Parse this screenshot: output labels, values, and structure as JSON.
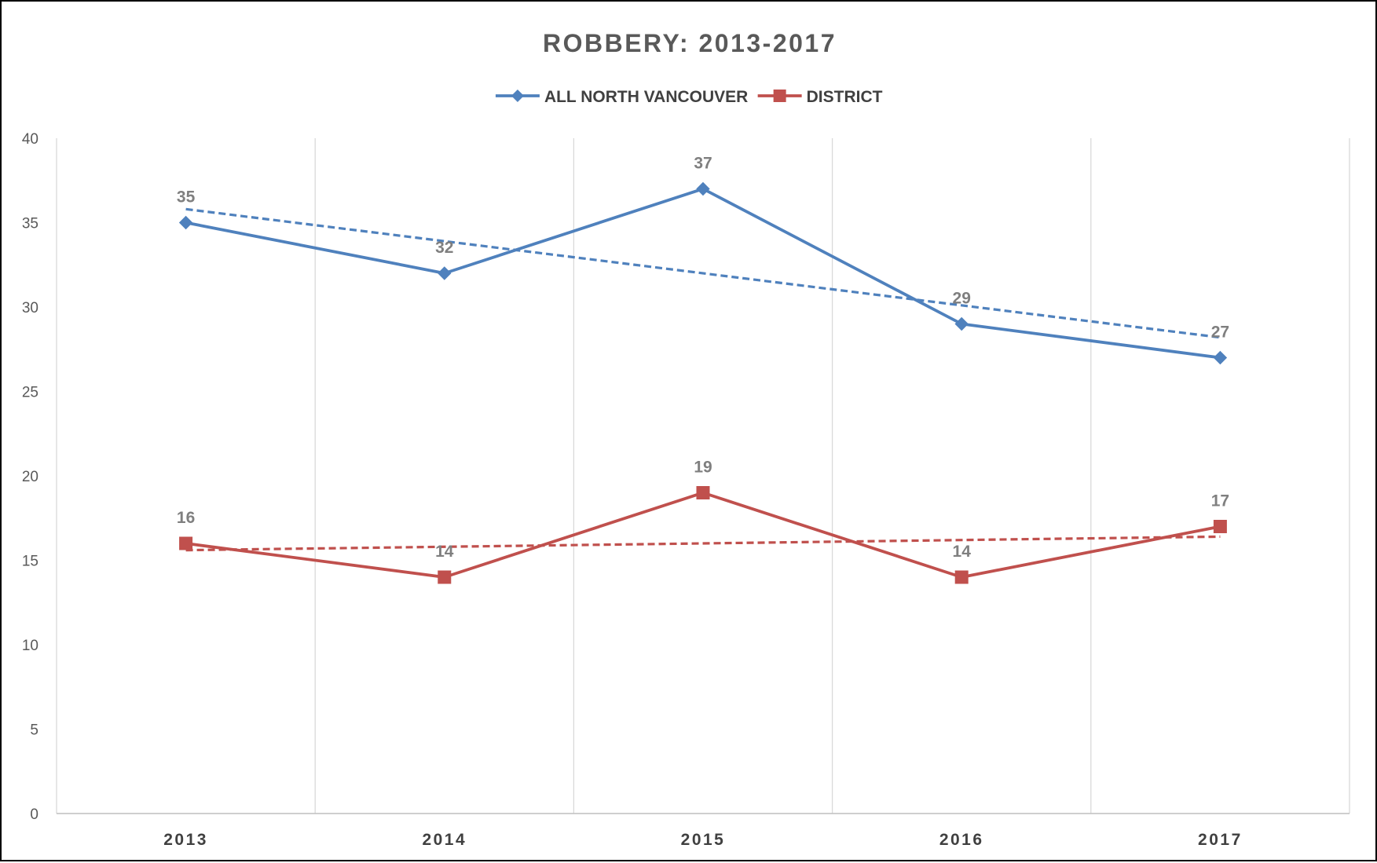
{
  "chart_data": {
    "type": "line",
    "title": "ROBBERY: 2013-2017",
    "xlabel": "",
    "ylabel": "",
    "categories": [
      "2013",
      "2014",
      "2015",
      "2016",
      "2017"
    ],
    "ylim": [
      0,
      40
    ],
    "yticks": [
      0,
      5,
      10,
      15,
      20,
      25,
      30,
      35,
      40
    ],
    "grid": {
      "vertical": true,
      "horizontal": false
    },
    "legend_position": "top",
    "series": [
      {
        "name": "ALL NORTH VANCOUVER",
        "values": [
          35,
          32,
          37,
          29,
          27
        ],
        "color": "#4f81bd",
        "marker": "diamond",
        "trendline": {
          "type": "linear",
          "style": "dashed",
          "start": 35.8,
          "end": 28.2
        }
      },
      {
        "name": "DISTRICT",
        "values": [
          16,
          14,
          19,
          14,
          17
        ],
        "color": "#c0504d",
        "marker": "square",
        "trendline": {
          "type": "linear",
          "style": "dashed",
          "start": 15.6,
          "end": 16.4
        }
      }
    ]
  }
}
